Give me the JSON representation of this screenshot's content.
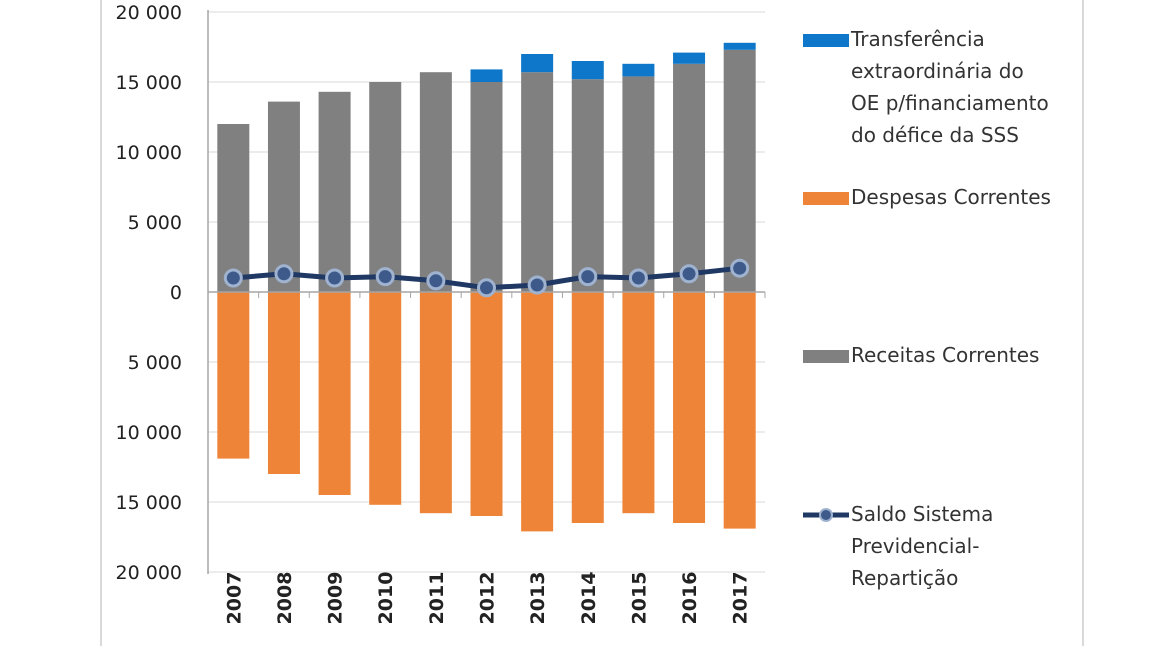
{
  "chart_data": {
    "type": "bar",
    "title": "",
    "xlabel": "",
    "ylabel": "",
    "categories": [
      "2007",
      "2008",
      "2009",
      "2010",
      "2011",
      "2012",
      "2013",
      "2014",
      "2015",
      "2016",
      "2017"
    ],
    "ylim": [
      -20000,
      20000
    ],
    "y_ticks": [
      {
        "value": 20000,
        "label": "20 000"
      },
      {
        "value": 15000,
        "label": "15 000"
      },
      {
        "value": 10000,
        "label": "10 000"
      },
      {
        "value": 5000,
        "label": "5 000"
      },
      {
        "value": 0,
        "label": "0"
      },
      {
        "value": -5000,
        "label": "5 000"
      },
      {
        "value": -10000,
        "label": "10 000"
      },
      {
        "value": -15000,
        "label": "15 000"
      },
      {
        "value": -20000,
        "label": "20 000"
      }
    ],
    "grid": true,
    "legend_position": "right",
    "series": [
      {
        "name": "Receitas Correntes",
        "kind": "stacked-bar",
        "color": "#808080",
        "values": [
          12000,
          13600,
          14300,
          15000,
          15700,
          15000,
          15700,
          15200,
          15400,
          16300,
          17300
        ]
      },
      {
        "name": "Transferência extraordinária do OE p/financiamento do défice da SSS",
        "kind": "stacked-bar",
        "color": "#0f77c9",
        "values": [
          0,
          0,
          0,
          0,
          0,
          900,
          1300,
          1300,
          900,
          800,
          500
        ]
      },
      {
        "name": "Despesas Correntes",
        "kind": "negative-bar",
        "color": "#ee8437",
        "values": [
          -11900,
          -13000,
          -14500,
          -15200,
          -15800,
          -16000,
          -17100,
          -16500,
          -15800,
          -16500,
          -16900
        ]
      },
      {
        "name": "Saldo Sistema Previdencial-Repartição",
        "kind": "line",
        "color": "#1f3864",
        "values": [
          1000,
          1300,
          1000,
          1100,
          800,
          300,
          500,
          1100,
          1000,
          1300,
          1700
        ]
      }
    ],
    "legend": [
      {
        "series": "Transferência extraordinária do OE p/financiamento do défice da SSS",
        "color": "#0f77c9",
        "lines": [
          "Transferência",
          "extraordinária do",
          "OE p/financiamento",
          "do défice da SSS"
        ]
      },
      {
        "series": "Despesas Correntes",
        "color": "#ee8437",
        "lines": [
          "Despesas Correntes"
        ]
      },
      {
        "series": "Receitas Correntes",
        "color": "#808080",
        "lines": [
          "Receitas Correntes"
        ]
      },
      {
        "series": "Saldo Sistema Previdencial-Repartição",
        "color": "#1f3864",
        "lines": [
          "Saldo Sistema",
          "Previdencial-",
          "Repartição"
        ]
      }
    ]
  }
}
